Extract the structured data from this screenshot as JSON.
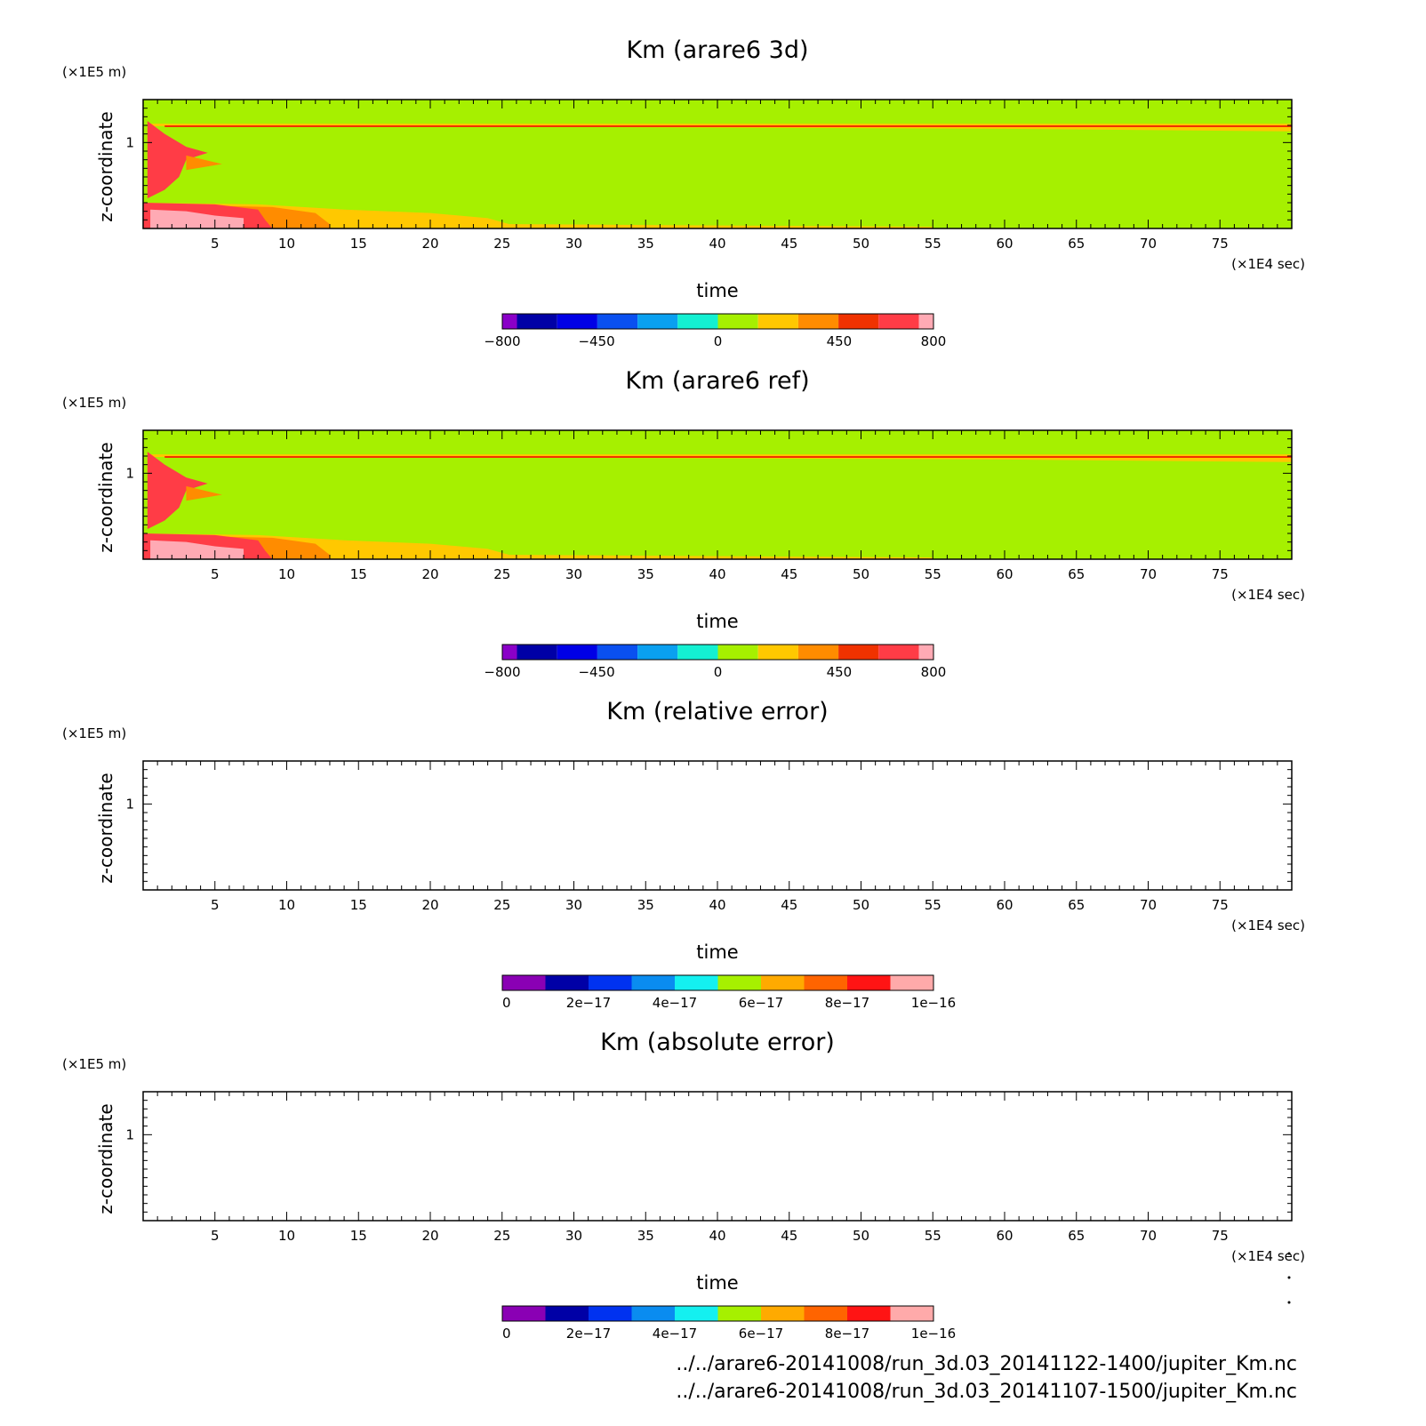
{
  "chart_data": [
    {
      "type": "heatmap",
      "title": "Km (arare6 3d)",
      "xlabel": "time",
      "ylabel": "z-coordinate",
      "x_unit": "(×1E4 sec)",
      "y_unit": "(×1E5 m)",
      "xlim": [
        0,
        80
      ],
      "ylim": [
        0,
        1.5
      ],
      "x_ticks": [
        "5",
        "10",
        "15",
        "20",
        "25",
        "30",
        "35",
        "40",
        "45",
        "50",
        "55",
        "60",
        "65",
        "70",
        "75"
      ],
      "y_ticks": [
        "1"
      ],
      "colorbar": {
        "min": -800,
        "max": 800,
        "tick_labels": [
          "−800",
          "−450",
          "0",
          "450",
          "800"
        ],
        "tick_values": [
          -800,
          -450,
          0,
          450,
          800
        ],
        "colors": [
          "#8a00c8",
          "#0000a6",
          "#0000e6",
          "#0a50f0",
          "#0aa0f0",
          "#14f0d2",
          "#a6f000",
          "#ffc800",
          "#ff8c00",
          "#f03200",
          "#ff3c46",
          "#ffaab4"
        ]
      },
      "field_description": "mostly green (~0) with red/orange near surface for early times and a thin orange layer near top"
    },
    {
      "type": "heatmap",
      "title": "Km (arare6 ref)",
      "xlabel": "time",
      "ylabel": "z-coordinate",
      "x_unit": "(×1E4 sec)",
      "y_unit": "(×1E5 m)",
      "xlim": [
        0,
        80
      ],
      "ylim": [
        0,
        1.5
      ],
      "x_ticks": [
        "5",
        "10",
        "15",
        "20",
        "25",
        "30",
        "35",
        "40",
        "45",
        "50",
        "55",
        "60",
        "65",
        "70",
        "75"
      ],
      "y_ticks": [
        "1"
      ],
      "colorbar": {
        "min": -800,
        "max": 800,
        "tick_labels": [
          "−800",
          "−450",
          "0",
          "450",
          "800"
        ],
        "tick_values": [
          -800,
          -450,
          0,
          450,
          800
        ],
        "colors": [
          "#8a00c8",
          "#0000a6",
          "#0000e6",
          "#0a50f0",
          "#0aa0f0",
          "#14f0d2",
          "#a6f000",
          "#ffc800",
          "#ff8c00",
          "#f03200",
          "#ff3c46",
          "#ffaab4"
        ]
      }
    },
    {
      "type": "heatmap",
      "title": "Km (relative error)",
      "xlabel": "time",
      "ylabel": "z-coordinate",
      "x_unit": "(×1E4 sec)",
      "y_unit": "(×1E5 m)",
      "xlim": [
        0,
        80
      ],
      "ylim": [
        0,
        1.5
      ],
      "x_ticks": [
        "5",
        "10",
        "15",
        "20",
        "25",
        "30",
        "35",
        "40",
        "45",
        "50",
        "55",
        "60",
        "65",
        "70",
        "75"
      ],
      "y_ticks": [
        "1"
      ],
      "colorbar": {
        "min": 0,
        "max": 1e-16,
        "tick_labels": [
          "0",
          "2e−17",
          "4e−17",
          "6e−17",
          "8e−17",
          "1e−16"
        ],
        "tick_values": [
          0,
          2e-17,
          4e-17,
          6e-17,
          8e-17,
          1e-16
        ],
        "colors": [
          "#8a00b4",
          "#0000a6",
          "#0032f0",
          "#0a8cf0",
          "#14f0f0",
          "#a6f000",
          "#ffaa00",
          "#ff6400",
          "#ff1414",
          "#ffaaaa"
        ]
      }
    },
    {
      "type": "heatmap",
      "title": "Km (absolute error)",
      "xlabel": "time",
      "ylabel": "z-coordinate",
      "x_unit": "(×1E4 sec)",
      "y_unit": "(×1E5 m)",
      "xlim": [
        0,
        80
      ],
      "ylim": [
        0,
        1.5
      ],
      "x_ticks": [
        "5",
        "10",
        "15",
        "20",
        "25",
        "30",
        "35",
        "40",
        "45",
        "50",
        "55",
        "60",
        "65",
        "70",
        "75"
      ],
      "y_ticks": [
        "1"
      ],
      "colorbar": {
        "min": 0,
        "max": 1e-16,
        "tick_labels": [
          "0",
          "2e−17",
          "4e−17",
          "6e−17",
          "8e−17",
          "1e−16"
        ],
        "tick_values": [
          0,
          2e-17,
          4e-17,
          6e-17,
          8e-17,
          1e-16
        ],
        "colors": [
          "#8a00b4",
          "#0000a6",
          "#0032f0",
          "#0a8cf0",
          "#14f0f0",
          "#a6f000",
          "#ffaa00",
          "#ff6400",
          "#ff1414",
          "#ffaaaa"
        ]
      }
    }
  ],
  "files": [
    "../../arare6-20141008/run_3d.03_20141122-1400/jupiter_Km.nc",
    "../../arare6-20141008/run_3d.03_20141107-1500/jupiter_Km.nc"
  ]
}
